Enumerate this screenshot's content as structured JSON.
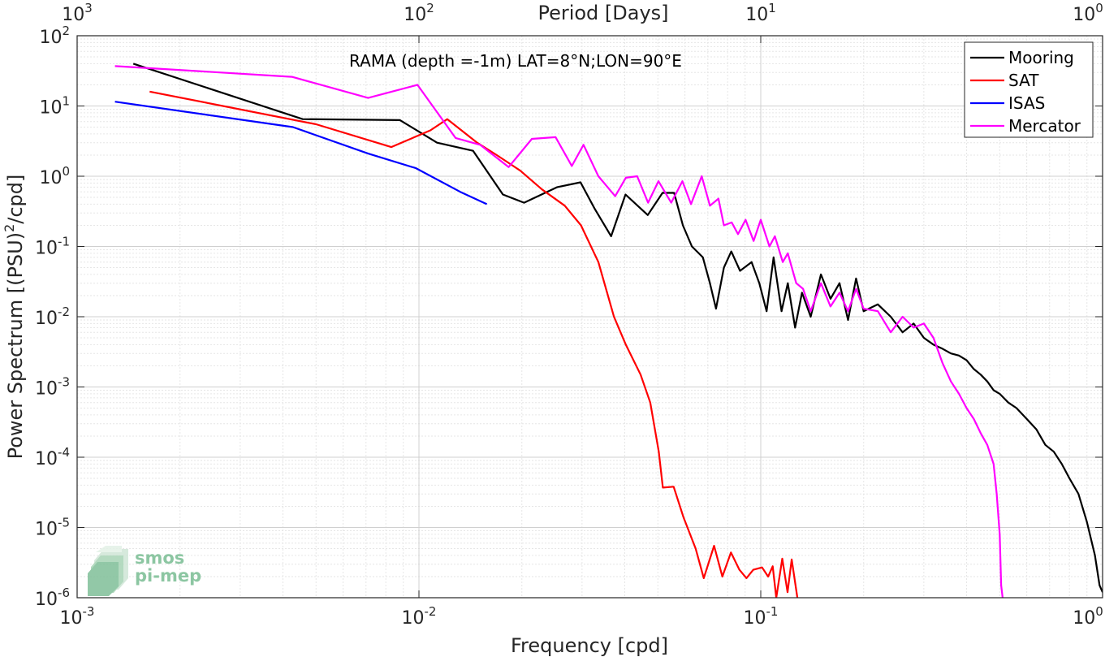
{
  "chart_data": {
    "type": "line",
    "title": "RAMA (depth =-1m) LAT=8°N;LON=90°E",
    "xlabel": "Frequency [cpd]",
    "ylabel": "Power Spectrum [(PSU)²/cpd]",
    "x_top_label": "Period [Days]",
    "xscale": "log",
    "yscale": "log",
    "xlim": [
      0.001,
      1
    ],
    "ylim": [
      1e-06,
      100
    ],
    "grid": true,
    "legend_position": "top-right",
    "x_ticks": [
      {
        "base": "10",
        "exp": "-3",
        "value": 0.001
      },
      {
        "base": "10",
        "exp": "-2",
        "value": 0.01
      },
      {
        "base": "10",
        "exp": "-1",
        "value": 0.1
      },
      {
        "base": "10",
        "exp": "0",
        "value": 1
      }
    ],
    "x_top_ticks": [
      {
        "base": "10",
        "exp": "3",
        "value": 0.001
      },
      {
        "base": "10",
        "exp": "2",
        "value": 0.01
      },
      {
        "base": "10",
        "exp": "1",
        "value": 0.1
      },
      {
        "base": "10",
        "exp": "0",
        "value": 1
      }
    ],
    "y_ticks": [
      {
        "base": "10",
        "exp": "2",
        "value": 100
      },
      {
        "base": "10",
        "exp": "1",
        "value": 10
      },
      {
        "base": "10",
        "exp": "0",
        "value": 1
      },
      {
        "base": "10",
        "exp": "-1",
        "value": 0.1
      },
      {
        "base": "10",
        "exp": "-2",
        "value": 0.01
      },
      {
        "base": "10",
        "exp": "-3",
        "value": 0.001
      },
      {
        "base": "10",
        "exp": "-4",
        "value": 0.0001
      },
      {
        "base": "10",
        "exp": "-5",
        "value": 1e-05
      },
      {
        "base": "10",
        "exp": "-6",
        "value": 1e-06
      }
    ],
    "series": [
      {
        "name": "Mooring",
        "color": "#000000",
        "points": [
          [
            0.00146,
            40
          ],
          [
            0.00457,
            6.5
          ],
          [
            0.0088,
            6.3
          ],
          [
            0.0113,
            3.0
          ],
          [
            0.0144,
            2.3
          ],
          [
            0.0176,
            0.55
          ],
          [
            0.0203,
            0.42
          ],
          [
            0.0254,
            0.7
          ],
          [
            0.0297,
            0.82
          ],
          [
            0.0326,
            0.35
          ],
          [
            0.0365,
            0.14
          ],
          [
            0.0402,
            0.55
          ],
          [
            0.0467,
            0.28
          ],
          [
            0.0516,
            0.58
          ],
          [
            0.0558,
            0.58
          ],
          [
            0.0592,
            0.2
          ],
          [
            0.0629,
            0.1
          ],
          [
            0.0677,
            0.07
          ],
          [
            0.071,
            0.03
          ],
          [
            0.074,
            0.013
          ],
          [
            0.078,
            0.05
          ],
          [
            0.082,
            0.085
          ],
          [
            0.087,
            0.045
          ],
          [
            0.094,
            0.06
          ],
          [
            0.099,
            0.03
          ],
          [
            0.104,
            0.012
          ],
          [
            0.109,
            0.07
          ],
          [
            0.115,
            0.012
          ],
          [
            0.12,
            0.03
          ],
          [
            0.126,
            0.007
          ],
          [
            0.132,
            0.022
          ],
          [
            0.14,
            0.01
          ],
          [
            0.15,
            0.04
          ],
          [
            0.16,
            0.018
          ],
          [
            0.17,
            0.03
          ],
          [
            0.18,
            0.009
          ],
          [
            0.19,
            0.035
          ],
          [
            0.2,
            0.012
          ],
          [
            0.22,
            0.015
          ],
          [
            0.24,
            0.01
          ],
          [
            0.26,
            0.006
          ],
          [
            0.28,
            0.008
          ],
          [
            0.3,
            0.005
          ],
          [
            0.32,
            0.004
          ],
          [
            0.34,
            0.0035
          ],
          [
            0.36,
            0.003
          ],
          [
            0.38,
            0.0028
          ],
          [
            0.4,
            0.0024
          ],
          [
            0.42,
            0.0018
          ],
          [
            0.44,
            0.0015
          ],
          [
            0.46,
            0.0012
          ],
          [
            0.48,
            0.0009
          ],
          [
            0.5,
            0.0008
          ],
          [
            0.53,
            0.0006
          ],
          [
            0.56,
            0.0005
          ],
          [
            0.6,
            0.00035
          ],
          [
            0.64,
            0.00025
          ],
          [
            0.68,
            0.00015
          ],
          [
            0.72,
            0.00012
          ],
          [
            0.76,
            8e-05
          ],
          [
            0.8,
            5e-05
          ],
          [
            0.85,
            3e-05
          ],
          [
            0.9,
            1.2e-05
          ],
          [
            0.95,
            4e-06
          ],
          [
            0.98,
            1.5e-06
          ],
          [
            1.0,
            1.2e-06
          ]
        ]
      },
      {
        "name": "SAT",
        "color": "#ff0000",
        "points": [
          [
            0.00163,
            16
          ],
          [
            0.005,
            5.5
          ],
          [
            0.0083,
            2.6
          ],
          [
            0.0108,
            4.5
          ],
          [
            0.0121,
            6.5
          ],
          [
            0.0148,
            3.0
          ],
          [
            0.0169,
            2.0
          ],
          [
            0.0198,
            1.2
          ],
          [
            0.0229,
            0.65
          ],
          [
            0.0267,
            0.38
          ],
          [
            0.0298,
            0.2
          ],
          [
            0.0335,
            0.06
          ],
          [
            0.0372,
            0.01
          ],
          [
            0.0403,
            0.004
          ],
          [
            0.0445,
            0.0015
          ],
          [
            0.0475,
            0.0006
          ],
          [
            0.0503,
            0.00012
          ],
          [
            0.0517,
            3.7e-05
          ],
          [
            0.0556,
            3.8e-05
          ],
          [
            0.0594,
            1.4e-05
          ],
          [
            0.0645,
            5e-06
          ],
          [
            0.0681,
            1.9e-06
          ],
          [
            0.073,
            5.5e-06
          ],
          [
            0.0772,
            2e-06
          ],
          [
            0.0818,
            4.4e-06
          ],
          [
            0.0866,
            2.5e-06
          ],
          [
            0.0908,
            1.9e-06
          ],
          [
            0.0951,
            2.5e-06
          ],
          [
            0.1009,
            2.7e-06
          ],
          [
            0.1051,
            2e-06
          ],
          [
            0.1084,
            2.8e-06
          ],
          [
            0.111,
            1e-06
          ],
          [
            0.1156,
            3.6e-06
          ],
          [
            0.1198,
            1.2e-06
          ],
          [
            0.1232,
            3.5e-06
          ],
          [
            0.128,
            1e-06
          ]
        ]
      },
      {
        "name": "ISAS",
        "color": "#0000ff",
        "points": [
          [
            0.00129,
            11.5
          ],
          [
            0.00428,
            5.0
          ],
          [
            0.0071,
            2.1
          ],
          [
            0.0098,
            1.3
          ],
          [
            0.0132,
            0.6
          ],
          [
            0.0158,
            0.4
          ]
        ]
      },
      {
        "name": "Mercator",
        "color": "#ff00ff",
        "points": [
          [
            0.00129,
            37
          ],
          [
            0.00425,
            26
          ],
          [
            0.0071,
            13
          ],
          [
            0.0099,
            20
          ],
          [
            0.0128,
            3.5
          ],
          [
            0.0151,
            2.8
          ],
          [
            0.0183,
            1.35
          ],
          [
            0.0214,
            3.4
          ],
          [
            0.0251,
            3.6
          ],
          [
            0.028,
            1.4
          ],
          [
            0.0303,
            2.8
          ],
          [
            0.0335,
            1.0
          ],
          [
            0.0375,
            0.52
          ],
          [
            0.0403,
            0.95
          ],
          [
            0.0435,
            1.0
          ],
          [
            0.0468,
            0.42
          ],
          [
            0.0502,
            0.85
          ],
          [
            0.0547,
            0.42
          ],
          [
            0.059,
            0.85
          ],
          [
            0.0625,
            0.4
          ],
          [
            0.0672,
            1.0
          ],
          [
            0.071,
            0.38
          ],
          [
            0.0752,
            0.48
          ],
          [
            0.078,
            0.2
          ],
          [
            0.0822,
            0.22
          ],
          [
            0.0858,
            0.15
          ],
          [
            0.0903,
            0.24
          ],
          [
            0.0953,
            0.12
          ],
          [
            0.1,
            0.24
          ],
          [
            0.106,
            0.1
          ],
          [
            0.11,
            0.14
          ],
          [
            0.116,
            0.06
          ],
          [
            0.12,
            0.08
          ],
          [
            0.127,
            0.03
          ],
          [
            0.133,
            0.025
          ],
          [
            0.14,
            0.012
          ],
          [
            0.15,
            0.03
          ],
          [
            0.16,
            0.014
          ],
          [
            0.17,
            0.022
          ],
          [
            0.18,
            0.012
          ],
          [
            0.19,
            0.025
          ],
          [
            0.2,
            0.013
          ],
          [
            0.22,
            0.012
          ],
          [
            0.24,
            0.006
          ],
          [
            0.26,
            0.01
          ],
          [
            0.28,
            0.007
          ],
          [
            0.3,
            0.008
          ],
          [
            0.32,
            0.005
          ],
          [
            0.34,
            0.0022
          ],
          [
            0.36,
            0.0012
          ],
          [
            0.38,
            0.0008
          ],
          [
            0.4,
            0.0005
          ],
          [
            0.42,
            0.00035
          ],
          [
            0.44,
            0.00022
          ],
          [
            0.46,
            0.00015
          ],
          [
            0.48,
            8e-05
          ],
          [
            0.49,
            3e-05
          ],
          [
            0.5,
            8e-06
          ],
          [
            0.505,
            1.5e-06
          ],
          [
            0.51,
            1e-06
          ]
        ]
      }
    ]
  },
  "watermark": {
    "line1": "smos",
    "line2": "pi-mep"
  }
}
